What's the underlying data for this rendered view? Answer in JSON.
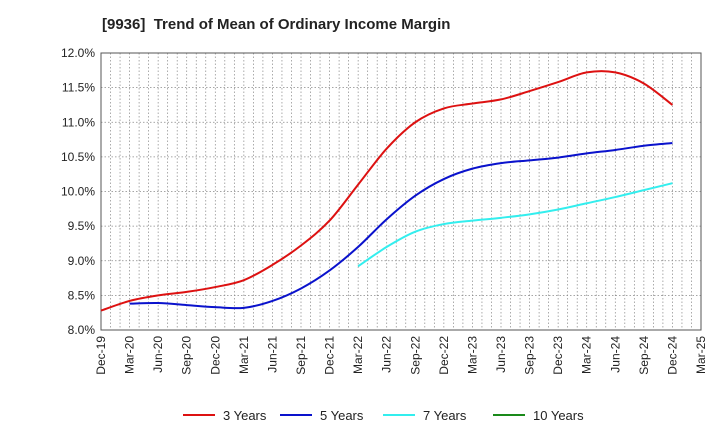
{
  "chart_data": {
    "type": "line",
    "title": "[9936]  Trend of Mean of Ordinary Income Margin",
    "xlabel": "",
    "ylabel": "",
    "x_ticks": [
      "Dec-19",
      "Mar-20",
      "Jun-20",
      "Sep-20",
      "Dec-20",
      "Mar-21",
      "Jun-21",
      "Sep-21",
      "Dec-21",
      "Mar-22",
      "Jun-22",
      "Sep-22",
      "Dec-22",
      "Mar-23",
      "Jun-23",
      "Sep-23",
      "Dec-23",
      "Mar-24",
      "Jun-24",
      "Sep-24",
      "Dec-24",
      "Mar-25"
    ],
    "y_ticks": [
      "8.0%",
      "8.5%",
      "9.0%",
      "9.5%",
      "10.0%",
      "10.5%",
      "11.0%",
      "11.5%",
      "12.0%"
    ],
    "ylim": [
      8.0,
      12.0
    ],
    "grid": true,
    "legend_position": "bottom",
    "series": [
      {
        "name": "3 Years",
        "color": "#dd1111",
        "x": [
          "Dec-19",
          "Mar-20",
          "Jun-20",
          "Sep-20",
          "Dec-20",
          "Mar-21",
          "Jun-21",
          "Sep-21",
          "Dec-21",
          "Mar-22",
          "Jun-22",
          "Sep-22",
          "Dec-22",
          "Mar-23",
          "Jun-23",
          "Sep-23",
          "Dec-23",
          "Mar-24",
          "Jun-24",
          "Sep-24",
          "Dec-24"
        ],
        "values": [
          8.28,
          8.42,
          8.5,
          8.55,
          8.62,
          8.72,
          8.94,
          9.22,
          9.58,
          10.1,
          10.62,
          11.0,
          11.2,
          11.27,
          11.33,
          11.45,
          11.58,
          11.72,
          11.72,
          11.56,
          11.25
        ]
      },
      {
        "name": "5 Years",
        "color": "#0a12cc",
        "x": [
          "Mar-20",
          "Jun-20",
          "Sep-20",
          "Dec-20",
          "Mar-21",
          "Jun-21",
          "Sep-21",
          "Dec-21",
          "Mar-22",
          "Jun-22",
          "Sep-22",
          "Dec-22",
          "Mar-23",
          "Jun-23",
          "Sep-23",
          "Dec-23",
          "Mar-24",
          "Jun-24",
          "Sep-24",
          "Dec-24"
        ],
        "values": [
          8.38,
          8.39,
          8.36,
          8.33,
          8.32,
          8.42,
          8.6,
          8.86,
          9.2,
          9.6,
          9.94,
          10.18,
          10.33,
          10.41,
          10.45,
          10.49,
          10.55,
          10.6,
          10.66,
          10.7
        ]
      },
      {
        "name": "7 Years",
        "color": "#33eeee",
        "x": [
          "Mar-22",
          "Jun-22",
          "Sep-22",
          "Dec-22",
          "Mar-23",
          "Jun-23",
          "Sep-23",
          "Dec-23",
          "Mar-24",
          "Jun-24",
          "Sep-24",
          "Dec-24"
        ],
        "values": [
          8.92,
          9.2,
          9.42,
          9.53,
          9.58,
          9.62,
          9.67,
          9.74,
          9.83,
          9.92,
          10.02,
          10.12
        ]
      },
      {
        "name": "10 Years",
        "color": "#1a8a1a",
        "x": [],
        "values": []
      }
    ]
  }
}
